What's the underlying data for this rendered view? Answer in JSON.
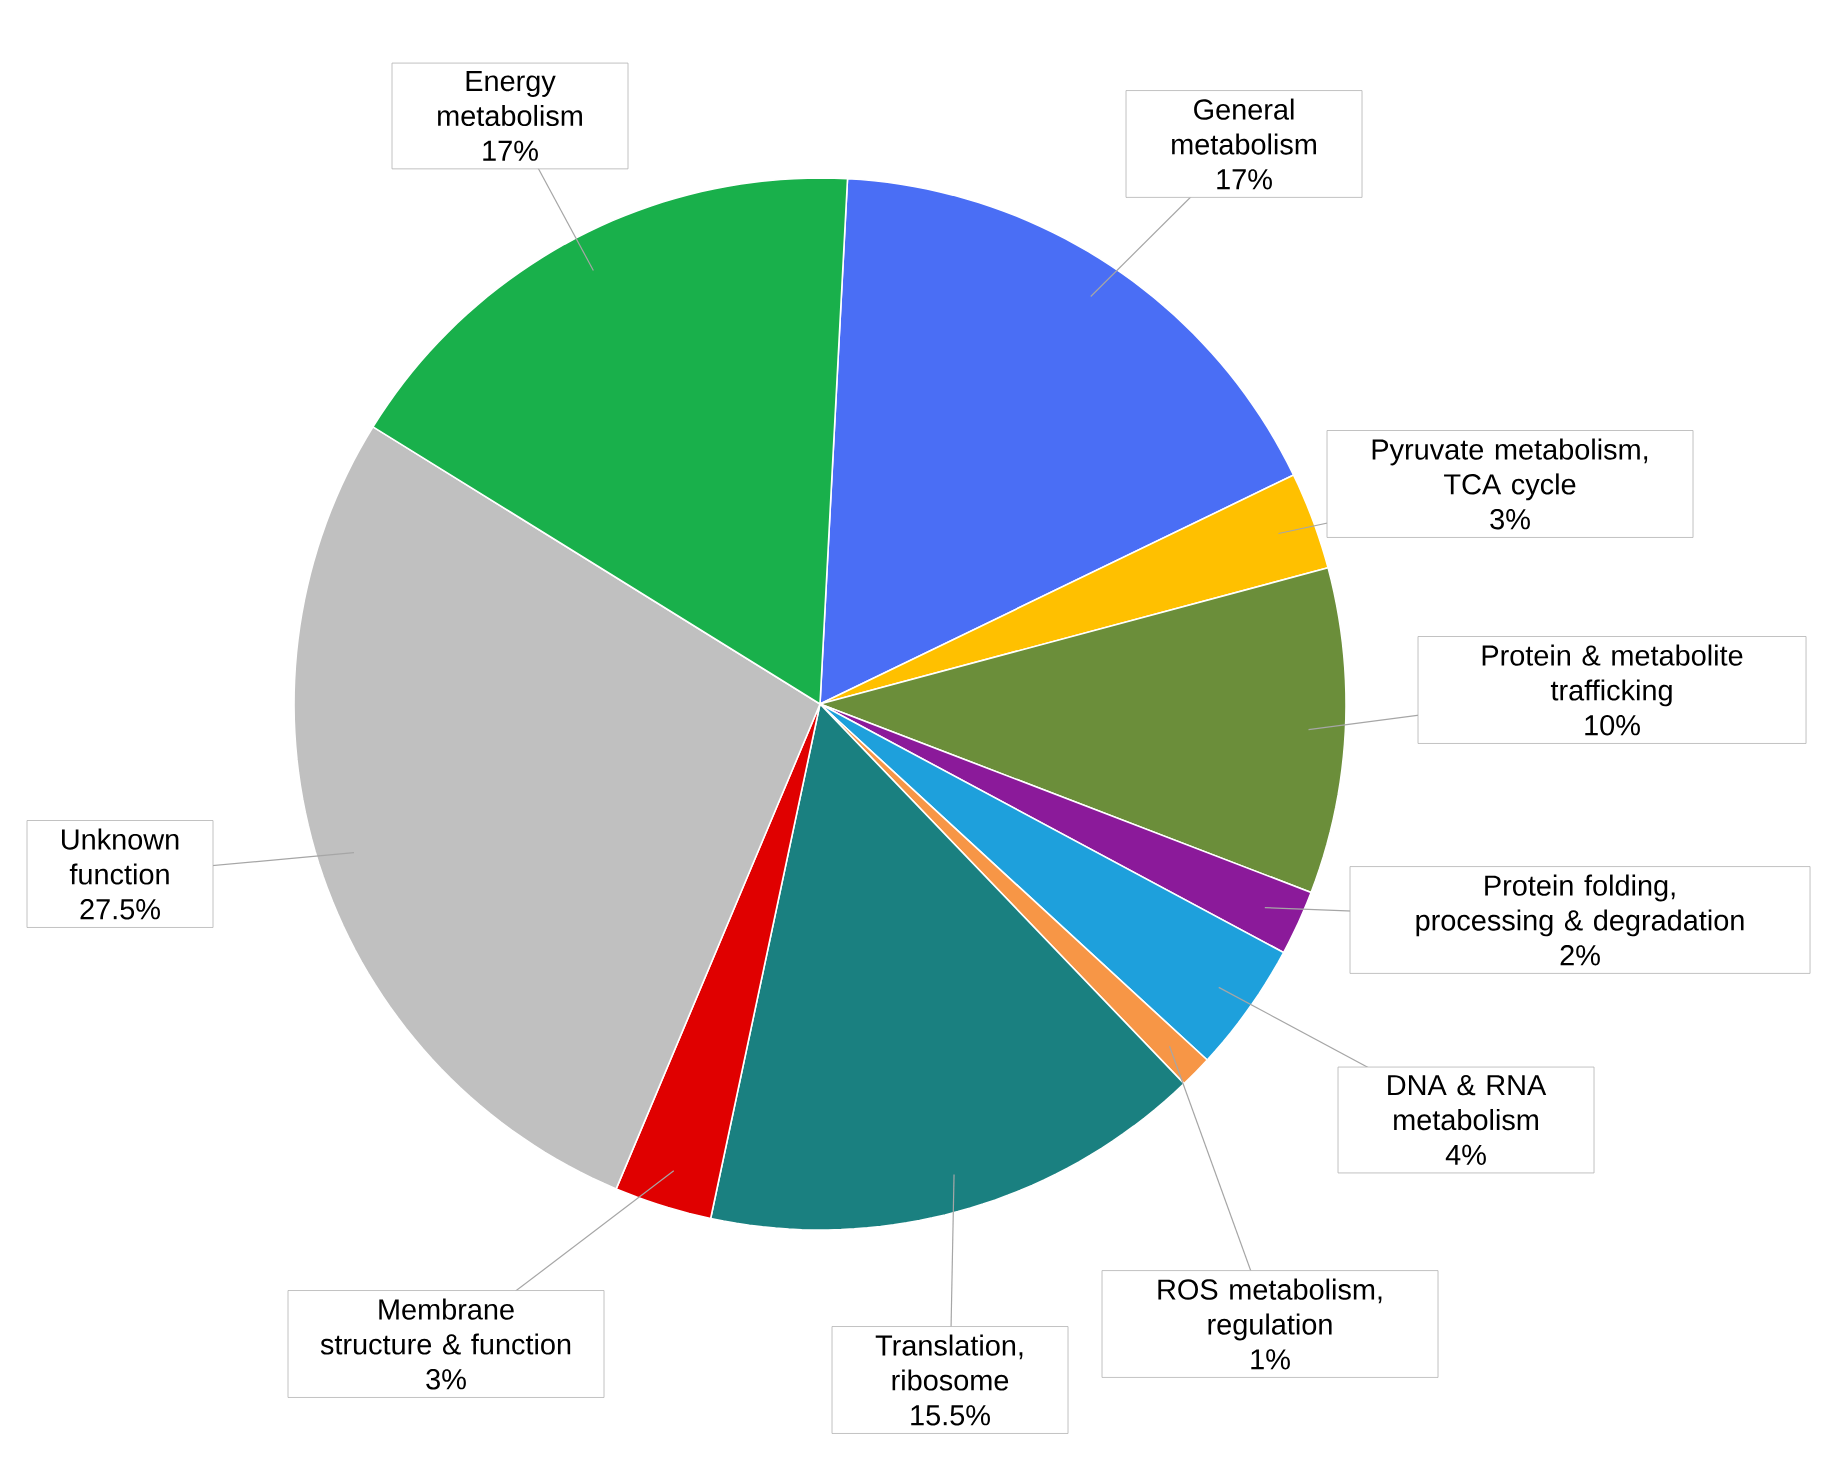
{
  "chart_data": {
    "type": "pie",
    "categories": [
      "General metabolism",
      "Pyruvate metabolism, TCA cycle",
      "Protein & metabolite trafficking",
      "Protein folding, processing & degradation",
      "DNA & RNA metabolism",
      "ROS metabolism, regulation",
      "Translation, ribosome",
      "Membrane structure & function",
      "Unknown function",
      "Energy metabolism"
    ],
    "values": [
      17,
      3,
      10,
      2,
      4,
      1,
      15.5,
      3,
      27.5,
      17
    ],
    "value_labels": [
      "17%",
      "3%",
      "10%",
      "2%",
      "4%",
      "1%",
      "15.5%",
      "3%",
      "27.5%",
      "17%"
    ],
    "colors": [
      "#4a6ef5",
      "#ffc000",
      "#6b8e3a",
      "#8b1a9a",
      "#1ea0dc",
      "#f79646",
      "#1a8080",
      "#e00000",
      "#c0c0c0",
      "#19b04b"
    ]
  }
}
